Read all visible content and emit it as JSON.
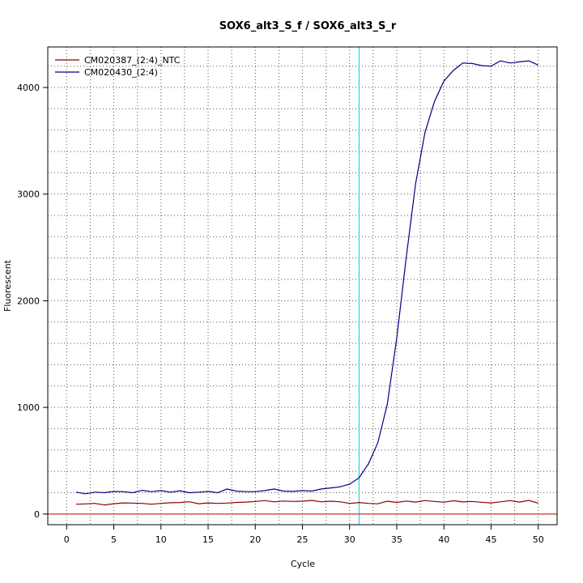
{
  "chart_data": {
    "type": "line",
    "title": "SOX6_alt3_S_f / SOX6_alt3_S_r",
    "xlabel": "Cycle",
    "ylabel": "Fluorescent",
    "xlim": [
      -2,
      52
    ],
    "ylim": [
      -100,
      4380
    ],
    "x_ticks": [
      0,
      5,
      10,
      15,
      20,
      25,
      30,
      35,
      40,
      45,
      50
    ],
    "y_ticks": [
      0,
      1000,
      2000,
      3000,
      4000
    ],
    "grid": "dotted",
    "threshold_cycle": 31,
    "baseline_value": 0,
    "legend_position": "top-left",
    "series": [
      {
        "name": "CM020387_(2:4)_NTC",
        "color": "#8B0000",
        "x": [
          1,
          2,
          3,
          4,
          5,
          6,
          7,
          8,
          9,
          10,
          11,
          12,
          13,
          14,
          15,
          16,
          17,
          18,
          19,
          20,
          21,
          22,
          23,
          24,
          25,
          26,
          27,
          28,
          29,
          30,
          31,
          32,
          33,
          34,
          35,
          36,
          37,
          38,
          39,
          40,
          41,
          42,
          43,
          44,
          45,
          46,
          47,
          48,
          49,
          50
        ],
        "values": [
          92,
          95,
          100,
          85,
          97,
          104,
          103,
          100,
          92,
          100,
          106,
          108,
          115,
          97,
          104,
          100,
          103,
          109,
          112,
          118,
          126,
          114,
          122,
          118,
          120,
          128,
          114,
          120,
          115,
          100,
          108,
          100,
          96,
          120,
          109,
          122,
          112,
          126,
          118,
          110,
          125,
          113,
          118,
          110,
          104,
          114,
          126,
          112,
          128,
          102
        ]
      },
      {
        "name": "CM020430_(2:4)",
        "color": "#000080",
        "x": [
          1,
          2,
          3,
          4,
          5,
          6,
          7,
          8,
          9,
          10,
          11,
          12,
          13,
          14,
          15,
          16,
          17,
          18,
          19,
          20,
          21,
          22,
          23,
          24,
          25,
          26,
          27,
          28,
          29,
          30,
          31,
          32,
          33,
          34,
          35,
          36,
          37,
          38,
          39,
          40,
          41,
          42,
          43,
          44,
          45,
          46,
          47,
          48,
          49,
          50
        ],
        "values": [
          205,
          190,
          205,
          200,
          212,
          210,
          200,
          222,
          210,
          220,
          205,
          218,
          200,
          205,
          212,
          200,
          235,
          215,
          210,
          210,
          220,
          235,
          215,
          212,
          220,
          215,
          235,
          245,
          255,
          280,
          340,
          470,
          670,
          1030,
          1650,
          2400,
          3100,
          3580,
          3870,
          4060,
          4160,
          4230,
          4225,
          4205,
          4200,
          4250,
          4230,
          4240,
          4250,
          4210
        ]
      }
    ]
  }
}
